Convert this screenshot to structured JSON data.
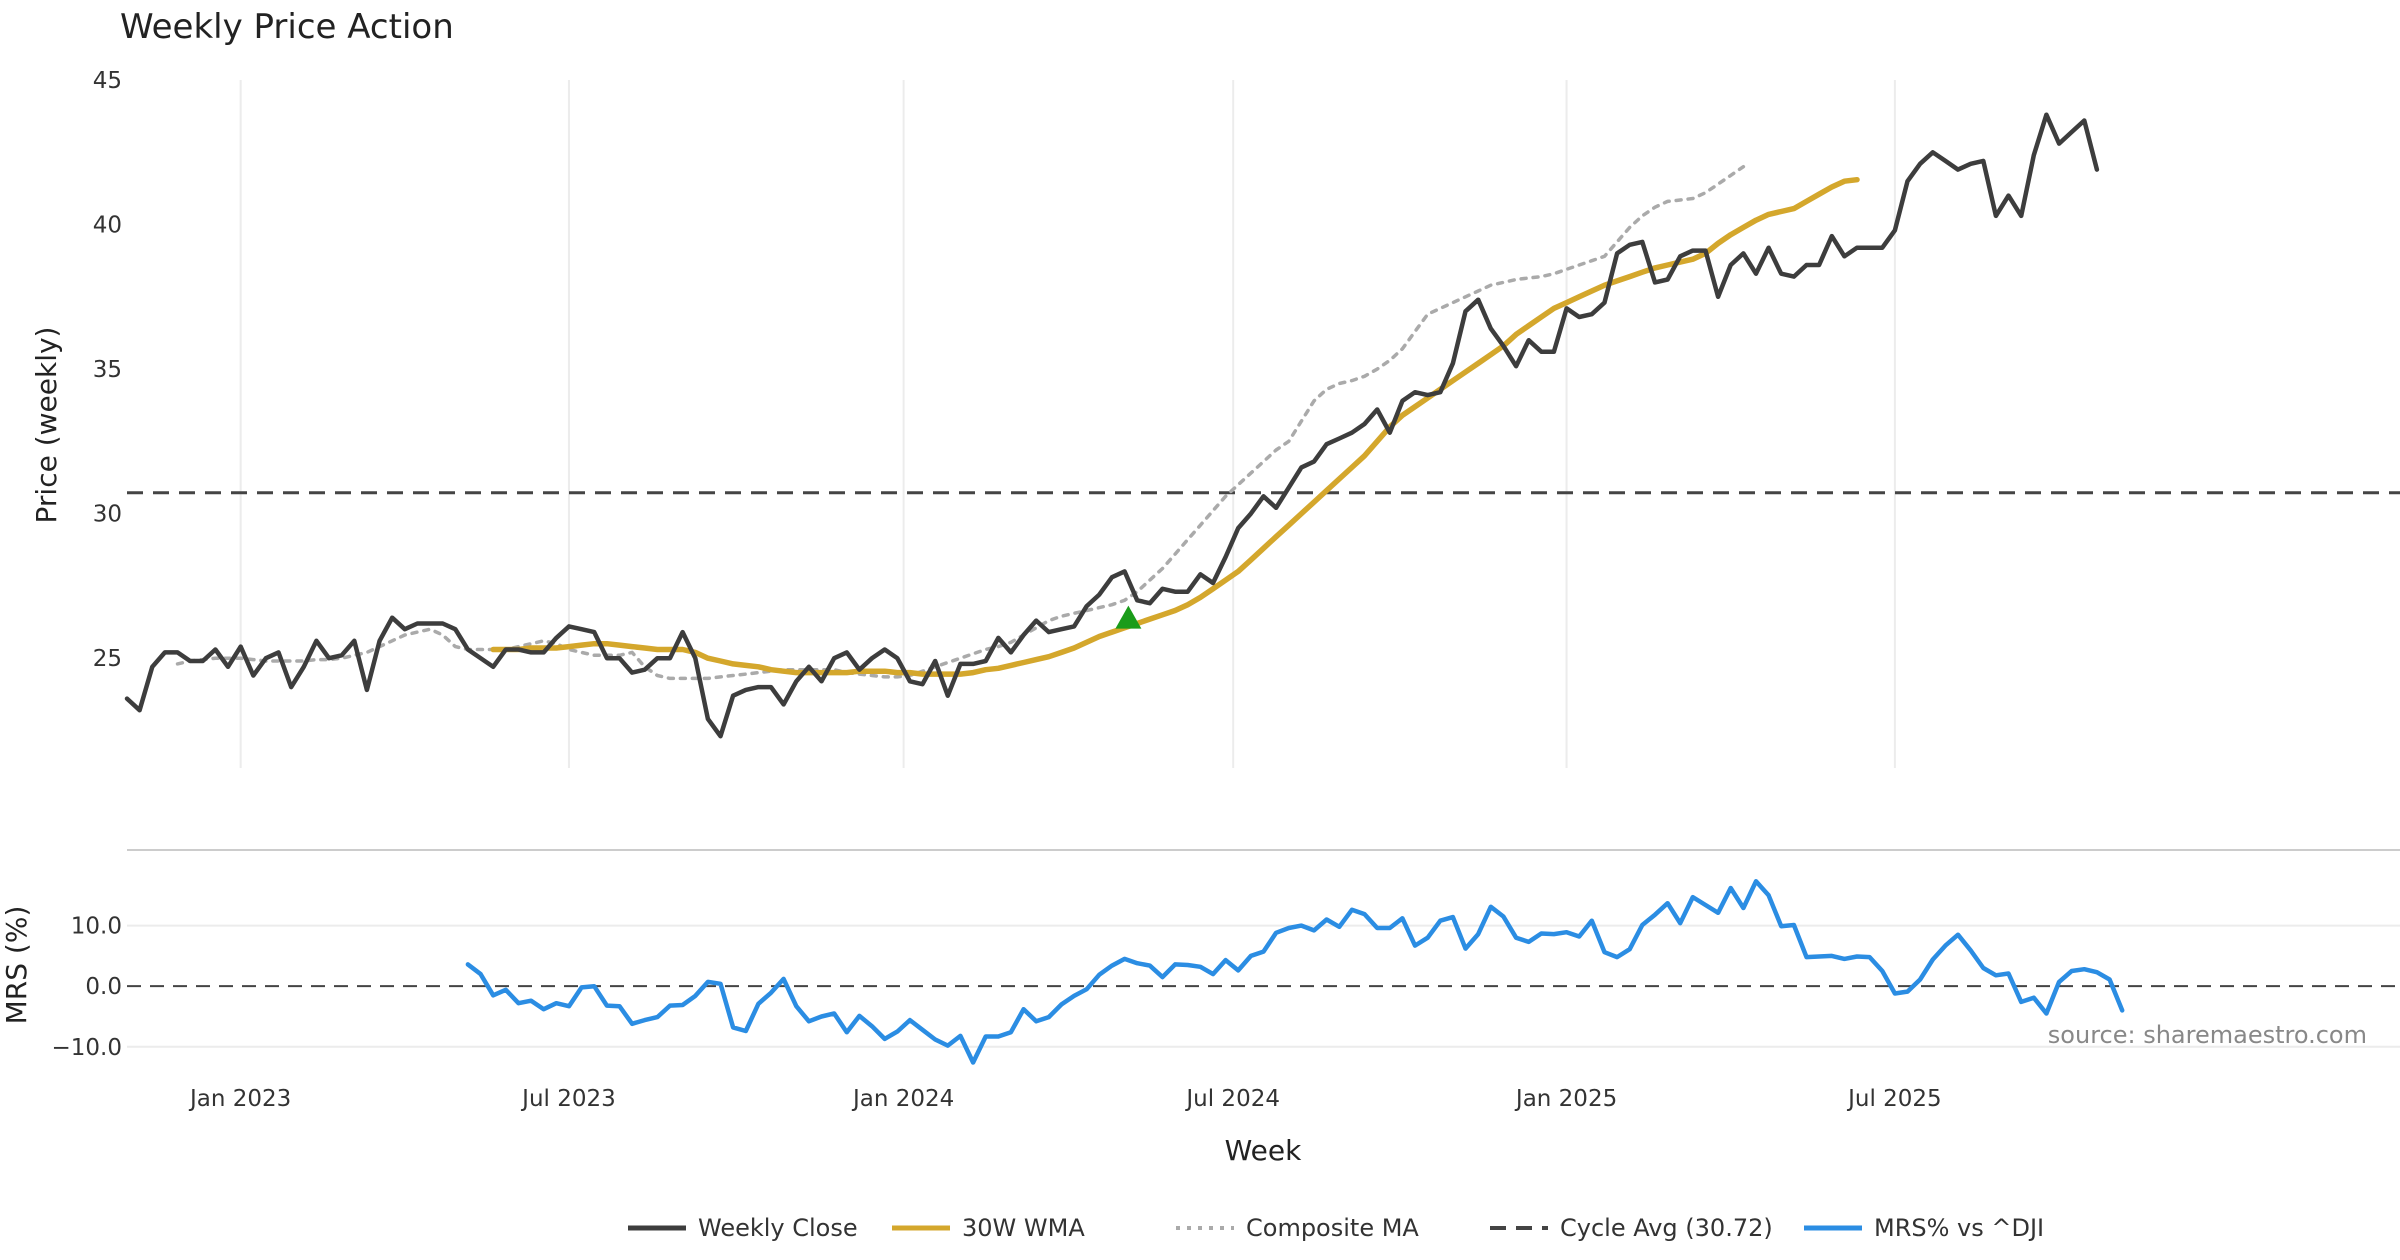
{
  "chart_data": {
    "type": "line",
    "title": "Weekly Price Action",
    "xlabel": "Week",
    "source_note": "source: sharemaestro.com",
    "x_ticks": [
      "Jan 2023",
      "Jul 2023",
      "Jan 2024",
      "Jul 2024",
      "Jan 2025",
      "Jul 2025"
    ],
    "x_range_weeks": [
      0,
      180
    ],
    "x_tick_weeks": [
      9,
      35,
      61.5,
      87.6,
      114,
      140
    ],
    "price_panel": {
      "ylabel": "Price (weekly)",
      "ylim": [
        21.2,
        45
      ],
      "yticks": [
        25,
        30,
        35,
        40,
        45
      ],
      "cycle_avg": 30.72,
      "signal": {
        "type": "buy",
        "week": 79.3,
        "value": 26.4,
        "color": "#1a9c1a"
      },
      "series": [
        {
          "name": "Weekly Close",
          "color": "#3d3d3d",
          "values": [
            23.6,
            23.2,
            24.7,
            25.2,
            25.2,
            24.9,
            24.9,
            25.3,
            24.7,
            25.4,
            24.4,
            25.0,
            25.2,
            24.0,
            24.7,
            25.6,
            25.0,
            25.1,
            25.6,
            23.9,
            25.6,
            26.4,
            26.0,
            26.2,
            26.2,
            26.2,
            26.0,
            25.3,
            25.0,
            24.7,
            25.3,
            25.3,
            25.2,
            25.2,
            25.7,
            26.1,
            26.0,
            25.9,
            25.0,
            25.0,
            24.5,
            24.6,
            25.0,
            25.0,
            25.9,
            25.0,
            22.9,
            22.3,
            23.7,
            23.9,
            24.0,
            24.0,
            23.4,
            24.2,
            24.7,
            24.2,
            25.0,
            25.2,
            24.6,
            25.0,
            25.3,
            25.0,
            24.2,
            24.1,
            24.9,
            23.7,
            24.8,
            24.8,
            24.9,
            25.7,
            25.2,
            25.8,
            26.3,
            25.9,
            26.0,
            26.1,
            26.8,
            27.2,
            27.8,
            28.0,
            27.0,
            26.9,
            27.4,
            27.3,
            27.3,
            27.9,
            27.6,
            28.5,
            29.5,
            30.0,
            30.6,
            30.2,
            30.9,
            31.6,
            31.8,
            32.4,
            32.6,
            32.8,
            33.1,
            33.6,
            32.8,
            33.9,
            34.2,
            34.1,
            34.2,
            35.2,
            37.0,
            37.4,
            36.4,
            35.8,
            35.1,
            36.0,
            35.6,
            35.6,
            37.1,
            36.8,
            36.9,
            37.3,
            39.0,
            39.3,
            39.4,
            38.0,
            38.1,
            38.9,
            39.1,
            39.1,
            37.5,
            38.6,
            39.0,
            38.3,
            39.2,
            38.3,
            38.2,
            38.6,
            38.6,
            39.6,
            38.9,
            39.2,
            39.2,
            39.2,
            39.8,
            41.5,
            42.1,
            42.5,
            42.2,
            41.9,
            42.1,
            42.2,
            40.3,
            41.0,
            40.3,
            42.4,
            43.8,
            42.8,
            43.2,
            43.6,
            41.9
          ]
        },
        {
          "name": "30W WMA",
          "color": "#d4a72c",
          "start_week": 29,
          "values": [
            25.3,
            25.3,
            25.3,
            25.35,
            25.35,
            25.35,
            25.4,
            25.45,
            25.5,
            25.5,
            25.45,
            25.4,
            25.35,
            25.3,
            25.3,
            25.3,
            25.2,
            25.0,
            24.9,
            24.8,
            24.75,
            24.7,
            24.6,
            24.55,
            24.5,
            24.5,
            24.5,
            24.5,
            24.5,
            24.55,
            24.55,
            24.55,
            24.5,
            24.5,
            24.45,
            24.45,
            24.45,
            24.45,
            24.5,
            24.6,
            24.65,
            24.75,
            24.85,
            24.95,
            25.05,
            25.2,
            25.35,
            25.55,
            25.75,
            25.9,
            26.05,
            26.2,
            26.35,
            26.5,
            26.65,
            26.85,
            27.1,
            27.4,
            27.7,
            28.0,
            28.4,
            28.8,
            29.2,
            29.6,
            30.0,
            30.4,
            30.8,
            31.2,
            31.6,
            32.0,
            32.5,
            33.0,
            33.4,
            33.7,
            34.0,
            34.3,
            34.6,
            34.9,
            35.2,
            35.5,
            35.8,
            36.2,
            36.5,
            36.8,
            37.1,
            37.3,
            37.5,
            37.7,
            37.9,
            38.05,
            38.2,
            38.35,
            38.5,
            38.6,
            38.7,
            38.8,
            39.0,
            39.35,
            39.65,
            39.9,
            40.15,
            40.35,
            40.45,
            40.55,
            40.8,
            41.05,
            41.3,
            41.5,
            41.55
          ]
        },
        {
          "name": "Composite MA",
          "color": "#aaaaaa",
          "start_week": 4,
          "values": [
            24.8,
            24.9,
            24.95,
            25.0,
            25.0,
            25.0,
            24.95,
            24.9,
            24.9,
            24.9,
            24.9,
            24.95,
            24.95,
            25.0,
            25.1,
            25.2,
            25.4,
            25.6,
            25.8,
            25.9,
            26.0,
            25.8,
            25.4,
            25.3,
            25.3,
            25.3,
            25.3,
            25.4,
            25.5,
            25.6,
            25.5,
            25.3,
            25.2,
            25.1,
            25.1,
            25.1,
            25.2,
            24.7,
            24.4,
            24.3,
            24.3,
            24.3,
            24.3,
            24.35,
            24.4,
            24.45,
            24.5,
            24.55,
            24.6,
            24.6,
            24.6,
            24.6,
            24.6,
            24.5,
            24.45,
            24.4,
            24.35,
            24.35,
            24.4,
            24.55,
            24.7,
            24.85,
            25.0,
            25.15,
            25.3,
            25.4,
            25.55,
            25.8,
            26.05,
            26.3,
            26.45,
            26.55,
            26.65,
            26.75,
            26.85,
            27.0,
            27.3,
            27.7,
            28.1,
            28.6,
            29.1,
            29.6,
            30.1,
            30.6,
            31.0,
            31.4,
            31.8,
            32.2,
            32.5,
            33.2,
            33.9,
            34.3,
            34.5,
            34.6,
            34.75,
            35.0,
            35.3,
            35.7,
            36.3,
            36.9,
            37.1,
            37.3,
            37.5,
            37.7,
            37.9,
            38.0,
            38.1,
            38.15,
            38.2,
            38.3,
            38.45,
            38.6,
            38.75,
            38.9,
            39.4,
            39.9,
            40.3,
            40.6,
            40.8,
            40.85,
            40.9,
            41.1,
            41.4,
            41.7,
            42.0
          ]
        }
      ]
    },
    "mrs_panel": {
      "ylabel": "MRS (%)",
      "ylim": [
        -13.5,
        19.5
      ],
      "yticks": [
        -10,
        0,
        10
      ],
      "ytick_labels": [
        "−10.0",
        "0.0",
        "10.0"
      ],
      "zero_line": 0,
      "series": [
        {
          "name": "MRS% vs ^DJI",
          "color": "#2b8de3",
          "start_week": 27,
          "values": [
            3.6,
            2.0,
            -1.5,
            -0.6,
            -2.8,
            -2.4,
            -3.8,
            -2.8,
            -3.3,
            -0.2,
            0.0,
            -3.2,
            -3.3,
            -6.2,
            -5.6,
            -5.1,
            -3.2,
            -3.1,
            -1.6,
            0.7,
            0.4,
            -6.8,
            -7.4,
            -2.9,
            -1.1,
            1.2,
            -3.3,
            -5.8,
            -5.0,
            -4.5,
            -7.6,
            -4.9,
            -6.6,
            -8.7,
            -7.5,
            -5.6,
            -7.2,
            -8.8,
            -9.8,
            -8.2,
            -12.6,
            -8.3,
            -8.3,
            -7.6,
            -3.8,
            -5.8,
            -5.1,
            -3.0,
            -1.6,
            -0.5,
            1.9,
            3.4,
            4.5,
            3.8,
            3.4,
            1.5,
            3.6,
            3.5,
            3.2,
            2.0,
            4.3,
            2.6,
            5.0,
            5.7,
            8.8,
            9.6,
            10.0,
            9.2,
            11.0,
            9.8,
            12.6,
            11.9,
            9.6,
            9.6,
            11.2,
            6.7,
            8.0,
            10.8,
            11.4,
            6.2,
            8.6,
            13.1,
            11.5,
            8.0,
            7.3,
            8.7,
            8.6,
            8.9,
            8.2,
            10.8,
            5.6,
            4.8,
            6.1,
            10.1,
            11.8,
            13.7,
            10.4,
            14.7,
            13.4,
            12.1,
            16.2,
            12.9,
            17.3,
            15.0,
            9.9,
            10.1,
            4.8,
            4.9,
            5.0,
            4.5,
            4.9,
            4.8,
            2.5,
            -1.2,
            -0.9,
            1.1,
            4.4,
            6.7,
            8.5,
            5.9,
            3.0,
            1.8,
            2.1,
            -2.6,
            -1.9,
            -4.5,
            0.7,
            2.5,
            2.8,
            2.3,
            1.1,
            -4.0
          ]
        }
      ]
    },
    "legend": [
      {
        "label": "Weekly Close",
        "color": "#3d3d3d",
        "style": "solid"
      },
      {
        "label": "30W WMA",
        "color": "#d4a72c",
        "style": "solid"
      },
      {
        "label": "Composite MA",
        "color": "#aaaaaa",
        "style": "dotted"
      },
      {
        "label": "Cycle Avg (30.72)",
        "color": "#444444",
        "style": "dashed"
      },
      {
        "label": "MRS% vs ^DJI",
        "color": "#2b8de3",
        "style": "solid"
      }
    ]
  }
}
